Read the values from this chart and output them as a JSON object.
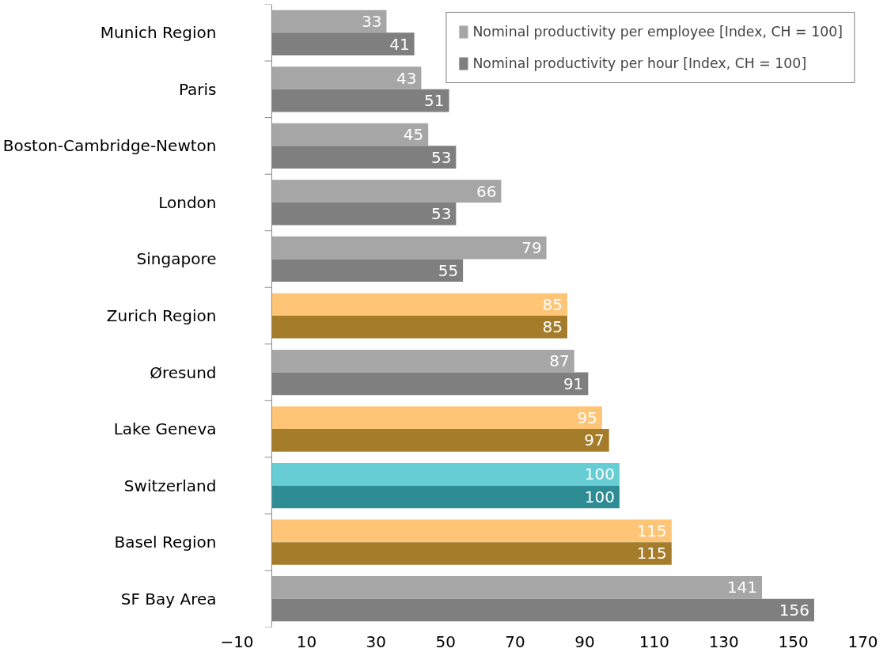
{
  "chart_data": {
    "type": "bar",
    "orientation": "horizontal",
    "categories": [
      "Munich Region",
      "Paris",
      "Boston-Cambridge-Newton",
      "London",
      "Singapore",
      "Zurich Region",
      "Øresund",
      "Lake Geneva",
      "Switzerland",
      "Basel Region",
      "SF Bay Area"
    ],
    "series": [
      {
        "name": "Nominal productivity per employee [Index, CH = 100]",
        "color": "#a6a6a6",
        "values": [
          33,
          43,
          45,
          66,
          79,
          85,
          87,
          95,
          100,
          115,
          141
        ],
        "colors": [
          null,
          null,
          null,
          null,
          null,
          "#ffc577",
          null,
          "#ffc577",
          "#66cdd4",
          "#ffc577",
          null
        ]
      },
      {
        "name": "Nominal productivity per hour [Index, CH = 100]",
        "color": "#7f7f7f",
        "values": [
          41,
          51,
          53,
          53,
          55,
          85,
          91,
          97,
          100,
          115,
          156
        ],
        "colors": [
          null,
          null,
          null,
          null,
          null,
          "#a47c2a",
          null,
          "#a47c2a",
          "#2e8c94",
          "#a47c2a",
          null
        ]
      }
    ],
    "xlim": [
      -10,
      170
    ],
    "xticks": [
      -10,
      10,
      30,
      50,
      70,
      90,
      110,
      130,
      150,
      170
    ],
    "data_labels": true,
    "grid": false,
    "legend": "top right"
  }
}
